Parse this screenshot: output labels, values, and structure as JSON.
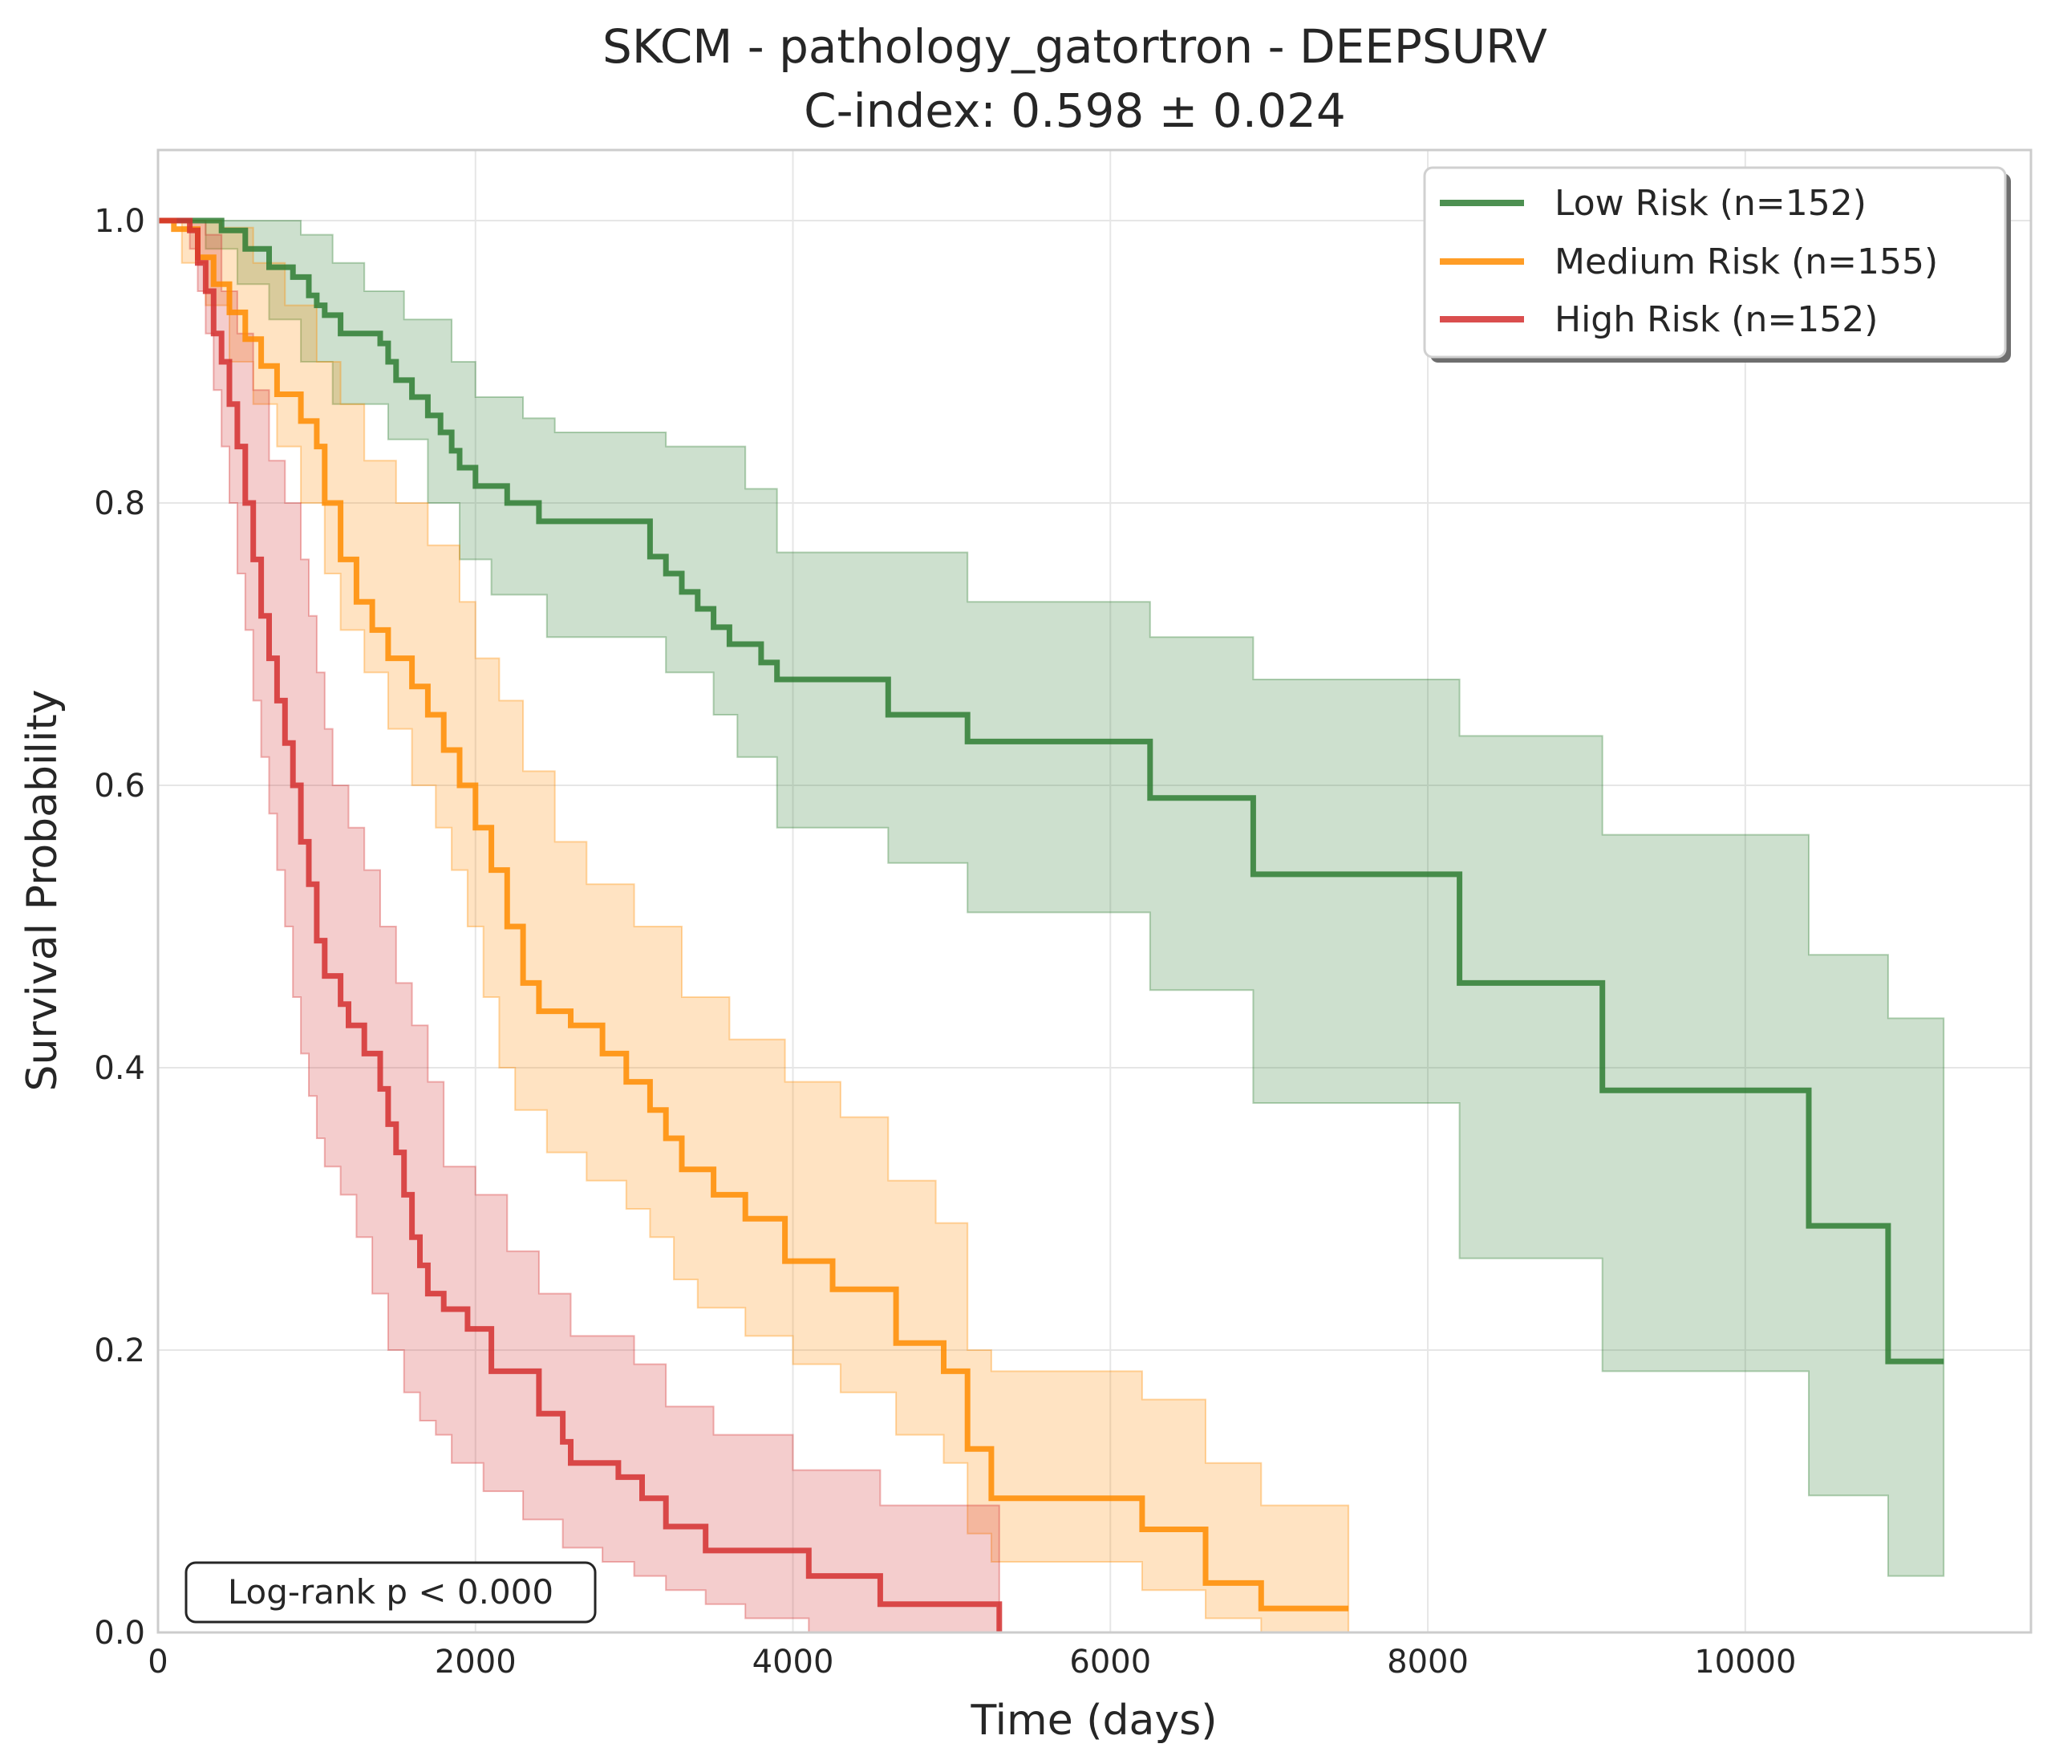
{
  "chart_data": {
    "type": "line",
    "subtype": "kaplan-meier survival curves with confidence bands",
    "title": "SKCM - pathology_gatortron - DEEPSURV",
    "subtitle": "C-index: 0.598 ± 0.024",
    "xlabel": "Time (days)",
    "ylabel": "Survival Probability",
    "xlim": [
      0,
      11800
    ],
    "ylim": [
      0,
      1.05
    ],
    "xticks": [
      0,
      2000,
      4000,
      6000,
      8000,
      10000
    ],
    "xtick_labels": [
      "0",
      "2000",
      "4000",
      "6000",
      "8000",
      "10000"
    ],
    "yticks": [
      0,
      0.2,
      0.4,
      0.6,
      0.8,
      1.0
    ],
    "ytick_labels": [
      "0.0",
      "0.2",
      "0.4",
      "0.6",
      "0.8",
      "1.0"
    ],
    "grid": true,
    "legend_position": "top-right",
    "annotation": "Log-rank p < 0.000",
    "series": [
      {
        "name": "Low Risk (n=152)",
        "color": "#2e7d32",
        "steps": [
          [
            0,
            1.0
          ],
          [
            200,
            1.0
          ],
          [
            400,
            0.993
          ],
          [
            550,
            0.98
          ],
          [
            700,
            0.967
          ],
          [
            850,
            0.96
          ],
          [
            950,
            0.947
          ],
          [
            1000,
            0.94
          ],
          [
            1050,
            0.933
          ],
          [
            1150,
            0.92
          ],
          [
            1400,
            0.913
          ],
          [
            1450,
            0.9
          ],
          [
            1500,
            0.887
          ],
          [
            1600,
            0.875
          ],
          [
            1700,
            0.862
          ],
          [
            1780,
            0.85
          ],
          [
            1850,
            0.837
          ],
          [
            1900,
            0.825
          ],
          [
            2000,
            0.812
          ],
          [
            2200,
            0.8
          ],
          [
            2400,
            0.787
          ],
          [
            3100,
            0.762
          ],
          [
            3200,
            0.75
          ],
          [
            3300,
            0.737
          ],
          [
            3400,
            0.725
          ],
          [
            3500,
            0.712
          ],
          [
            3600,
            0.7
          ],
          [
            3800,
            0.687
          ],
          [
            3900,
            0.675
          ],
          [
            4600,
            0.65
          ],
          [
            5100,
            0.631
          ],
          [
            6250,
            0.591
          ],
          [
            6900,
            0.537
          ],
          [
            8200,
            0.46
          ],
          [
            9100,
            0.384
          ],
          [
            10400,
            0.288
          ],
          [
            10900,
            0.192
          ],
          [
            11250,
            0.192
          ]
        ],
        "ci_upper": [
          [
            0,
            1.0
          ],
          [
            500,
            1.0
          ],
          [
            900,
            0.99
          ],
          [
            1100,
            0.97
          ],
          [
            1300,
            0.95
          ],
          [
            1550,
            0.93
          ],
          [
            1850,
            0.9
          ],
          [
            2000,
            0.875
          ],
          [
            2300,
            0.86
          ],
          [
            2500,
            0.85
          ],
          [
            3200,
            0.84
          ],
          [
            3700,
            0.81
          ],
          [
            3900,
            0.765
          ],
          [
            5100,
            0.73
          ],
          [
            6250,
            0.705
          ],
          [
            6900,
            0.675
          ],
          [
            8200,
            0.635
          ],
          [
            9100,
            0.565
          ],
          [
            10400,
            0.48
          ],
          [
            10900,
            0.435
          ],
          [
            11250,
            0.435
          ]
        ],
        "ci_lower": [
          [
            0,
            1.0
          ],
          [
            300,
            0.98
          ],
          [
            500,
            0.955
          ],
          [
            700,
            0.93
          ],
          [
            900,
            0.9
          ],
          [
            1100,
            0.87
          ],
          [
            1450,
            0.845
          ],
          [
            1700,
            0.8
          ],
          [
            1900,
            0.76
          ],
          [
            2100,
            0.735
          ],
          [
            2450,
            0.705
          ],
          [
            3200,
            0.68
          ],
          [
            3500,
            0.65
          ],
          [
            3650,
            0.62
          ],
          [
            3900,
            0.57
          ],
          [
            4600,
            0.545
          ],
          [
            5100,
            0.51
          ],
          [
            6250,
            0.455
          ],
          [
            6900,
            0.375
          ],
          [
            8200,
            0.265
          ],
          [
            9100,
            0.185
          ],
          [
            10400,
            0.097
          ],
          [
            10900,
            0.04
          ],
          [
            11250,
            0.04
          ]
        ]
      },
      {
        "name": "Medium Risk (n=155)",
        "color": "#ff8c00",
        "steps": [
          [
            0,
            1.0
          ],
          [
            100,
            0.994
          ],
          [
            250,
            0.974
          ],
          [
            350,
            0.955
          ],
          [
            450,
            0.935
          ],
          [
            550,
            0.916
          ],
          [
            650,
            0.897
          ],
          [
            750,
            0.877
          ],
          [
            900,
            0.858
          ],
          [
            1000,
            0.84
          ],
          [
            1050,
            0.8
          ],
          [
            1150,
            0.76
          ],
          [
            1250,
            0.73
          ],
          [
            1350,
            0.71
          ],
          [
            1450,
            0.69
          ],
          [
            1600,
            0.67
          ],
          [
            1700,
            0.65
          ],
          [
            1800,
            0.625
          ],
          [
            1900,
            0.6
          ],
          [
            2000,
            0.57
          ],
          [
            2100,
            0.54
          ],
          [
            2200,
            0.5
          ],
          [
            2300,
            0.46
          ],
          [
            2400,
            0.44
          ],
          [
            2600,
            0.43
          ],
          [
            2800,
            0.41
          ],
          [
            2950,
            0.39
          ],
          [
            3100,
            0.37
          ],
          [
            3200,
            0.35
          ],
          [
            3300,
            0.328
          ],
          [
            3500,
            0.31
          ],
          [
            3700,
            0.293
          ],
          [
            3950,
            0.263
          ],
          [
            4250,
            0.243
          ],
          [
            4650,
            0.205
          ],
          [
            4950,
            0.185
          ],
          [
            5100,
            0.13
          ],
          [
            5250,
            0.095
          ],
          [
            6200,
            0.073
          ],
          [
            6600,
            0.035
          ],
          [
            6950,
            0.017
          ],
          [
            7500,
            0.017
          ]
        ],
        "ci_upper": [
          [
            0,
            1.0
          ],
          [
            400,
            0.995
          ],
          [
            600,
            0.97
          ],
          [
            800,
            0.94
          ],
          [
            1000,
            0.9
          ],
          [
            1150,
            0.87
          ],
          [
            1300,
            0.83
          ],
          [
            1500,
            0.8
          ],
          [
            1700,
            0.77
          ],
          [
            1900,
            0.73
          ],
          [
            2000,
            0.69
          ],
          [
            2150,
            0.66
          ],
          [
            2300,
            0.61
          ],
          [
            2500,
            0.56
          ],
          [
            2700,
            0.53
          ],
          [
            3000,
            0.5
          ],
          [
            3300,
            0.45
          ],
          [
            3600,
            0.42
          ],
          [
            3950,
            0.39
          ],
          [
            4300,
            0.365
          ],
          [
            4600,
            0.32
          ],
          [
            4900,
            0.29
          ],
          [
            5100,
            0.2
          ],
          [
            5250,
            0.185
          ],
          [
            6200,
            0.165
          ],
          [
            6600,
            0.12
          ],
          [
            6950,
            0.09
          ],
          [
            7500,
            0.09
          ]
        ],
        "ci_lower": [
          [
            0,
            1.0
          ],
          [
            150,
            0.97
          ],
          [
            300,
            0.94
          ],
          [
            450,
            0.9
          ],
          [
            600,
            0.87
          ],
          [
            750,
            0.84
          ],
          [
            900,
            0.8
          ],
          [
            1050,
            0.75
          ],
          [
            1150,
            0.71
          ],
          [
            1300,
            0.68
          ],
          [
            1450,
            0.64
          ],
          [
            1600,
            0.6
          ],
          [
            1750,
            0.57
          ],
          [
            1850,
            0.54
          ],
          [
            1950,
            0.5
          ],
          [
            2050,
            0.45
          ],
          [
            2150,
            0.4
          ],
          [
            2250,
            0.37
          ],
          [
            2450,
            0.34
          ],
          [
            2700,
            0.32
          ],
          [
            2950,
            0.3
          ],
          [
            3100,
            0.28
          ],
          [
            3250,
            0.25
          ],
          [
            3400,
            0.23
          ],
          [
            3700,
            0.21
          ],
          [
            4000,
            0.19
          ],
          [
            4300,
            0.17
          ],
          [
            4650,
            0.14
          ],
          [
            4950,
            0.12
          ],
          [
            5100,
            0.07
          ],
          [
            5250,
            0.05
          ],
          [
            6200,
            0.03
          ],
          [
            6600,
            0.01
          ],
          [
            6950,
            0.0
          ],
          [
            7500,
            0.0
          ]
        ]
      },
      {
        "name": "High Risk (n=152)",
        "color": "#d32f2f",
        "steps": [
          [
            0,
            1.0
          ],
          [
            200,
            0.993
          ],
          [
            250,
            0.97
          ],
          [
            300,
            0.95
          ],
          [
            350,
            0.92
          ],
          [
            400,
            0.9
          ],
          [
            450,
            0.87
          ],
          [
            500,
            0.84
          ],
          [
            550,
            0.8
          ],
          [
            600,
            0.76
          ],
          [
            650,
            0.72
          ],
          [
            700,
            0.69
          ],
          [
            750,
            0.66
          ],
          [
            800,
            0.63
          ],
          [
            850,
            0.6
          ],
          [
            900,
            0.56
          ],
          [
            950,
            0.53
          ],
          [
            1000,
            0.49
          ],
          [
            1050,
            0.465
          ],
          [
            1150,
            0.445
          ],
          [
            1200,
            0.43
          ],
          [
            1300,
            0.41
          ],
          [
            1400,
            0.385
          ],
          [
            1450,
            0.36
          ],
          [
            1500,
            0.34
          ],
          [
            1550,
            0.31
          ],
          [
            1600,
            0.28
          ],
          [
            1650,
            0.26
          ],
          [
            1700,
            0.24
          ],
          [
            1800,
            0.229
          ],
          [
            1950,
            0.215
          ],
          [
            2000,
            0.215
          ],
          [
            2100,
            0.185
          ],
          [
            2400,
            0.155
          ],
          [
            2550,
            0.135
          ],
          [
            2600,
            0.12
          ],
          [
            2900,
            0.11
          ],
          [
            3050,
            0.095
          ],
          [
            3200,
            0.075
          ],
          [
            3450,
            0.058
          ],
          [
            4100,
            0.04
          ],
          [
            4550,
            0.02
          ],
          [
            5300,
            0.0
          ]
        ],
        "ci_upper": [
          [
            0,
            1.0
          ],
          [
            300,
            0.99
          ],
          [
            400,
            0.95
          ],
          [
            500,
            0.92
          ],
          [
            600,
            0.88
          ],
          [
            700,
            0.83
          ],
          [
            800,
            0.8
          ],
          [
            900,
            0.76
          ],
          [
            950,
            0.72
          ],
          [
            1000,
            0.68
          ],
          [
            1050,
            0.64
          ],
          [
            1100,
            0.6
          ],
          [
            1200,
            0.57
          ],
          [
            1300,
            0.54
          ],
          [
            1400,
            0.5
          ],
          [
            1500,
            0.46
          ],
          [
            1600,
            0.43
          ],
          [
            1700,
            0.39
          ],
          [
            1800,
            0.33
          ],
          [
            2000,
            0.31
          ],
          [
            2200,
            0.27
          ],
          [
            2400,
            0.24
          ],
          [
            2600,
            0.21
          ],
          [
            3000,
            0.19
          ],
          [
            3200,
            0.16
          ],
          [
            3500,
            0.14
          ],
          [
            4000,
            0.115
          ],
          [
            4550,
            0.09
          ],
          [
            5300,
            0.09
          ]
        ],
        "ci_lower": [
          [
            0,
            1.0
          ],
          [
            200,
            0.98
          ],
          [
            250,
            0.95
          ],
          [
            300,
            0.92
          ],
          [
            350,
            0.88
          ],
          [
            400,
            0.84
          ],
          [
            450,
            0.8
          ],
          [
            500,
            0.75
          ],
          [
            550,
            0.71
          ],
          [
            600,
            0.66
          ],
          [
            650,
            0.62
          ],
          [
            700,
            0.58
          ],
          [
            750,
            0.54
          ],
          [
            800,
            0.5
          ],
          [
            850,
            0.45
          ],
          [
            900,
            0.41
          ],
          [
            950,
            0.38
          ],
          [
            1000,
            0.35
          ],
          [
            1050,
            0.33
          ],
          [
            1150,
            0.31
          ],
          [
            1250,
            0.28
          ],
          [
            1350,
            0.24
          ],
          [
            1450,
            0.2
          ],
          [
            1550,
            0.17
          ],
          [
            1650,
            0.15
          ],
          [
            1750,
            0.14
          ],
          [
            1850,
            0.12
          ],
          [
            2050,
            0.1
          ],
          [
            2300,
            0.08
          ],
          [
            2550,
            0.06
          ],
          [
            2800,
            0.05
          ],
          [
            3000,
            0.04
          ],
          [
            3200,
            0.03
          ],
          [
            3450,
            0.02
          ],
          [
            3700,
            0.01
          ],
          [
            4100,
            0.0
          ],
          [
            4550,
            0.0
          ],
          [
            5300,
            0.0
          ]
        ]
      }
    ]
  }
}
